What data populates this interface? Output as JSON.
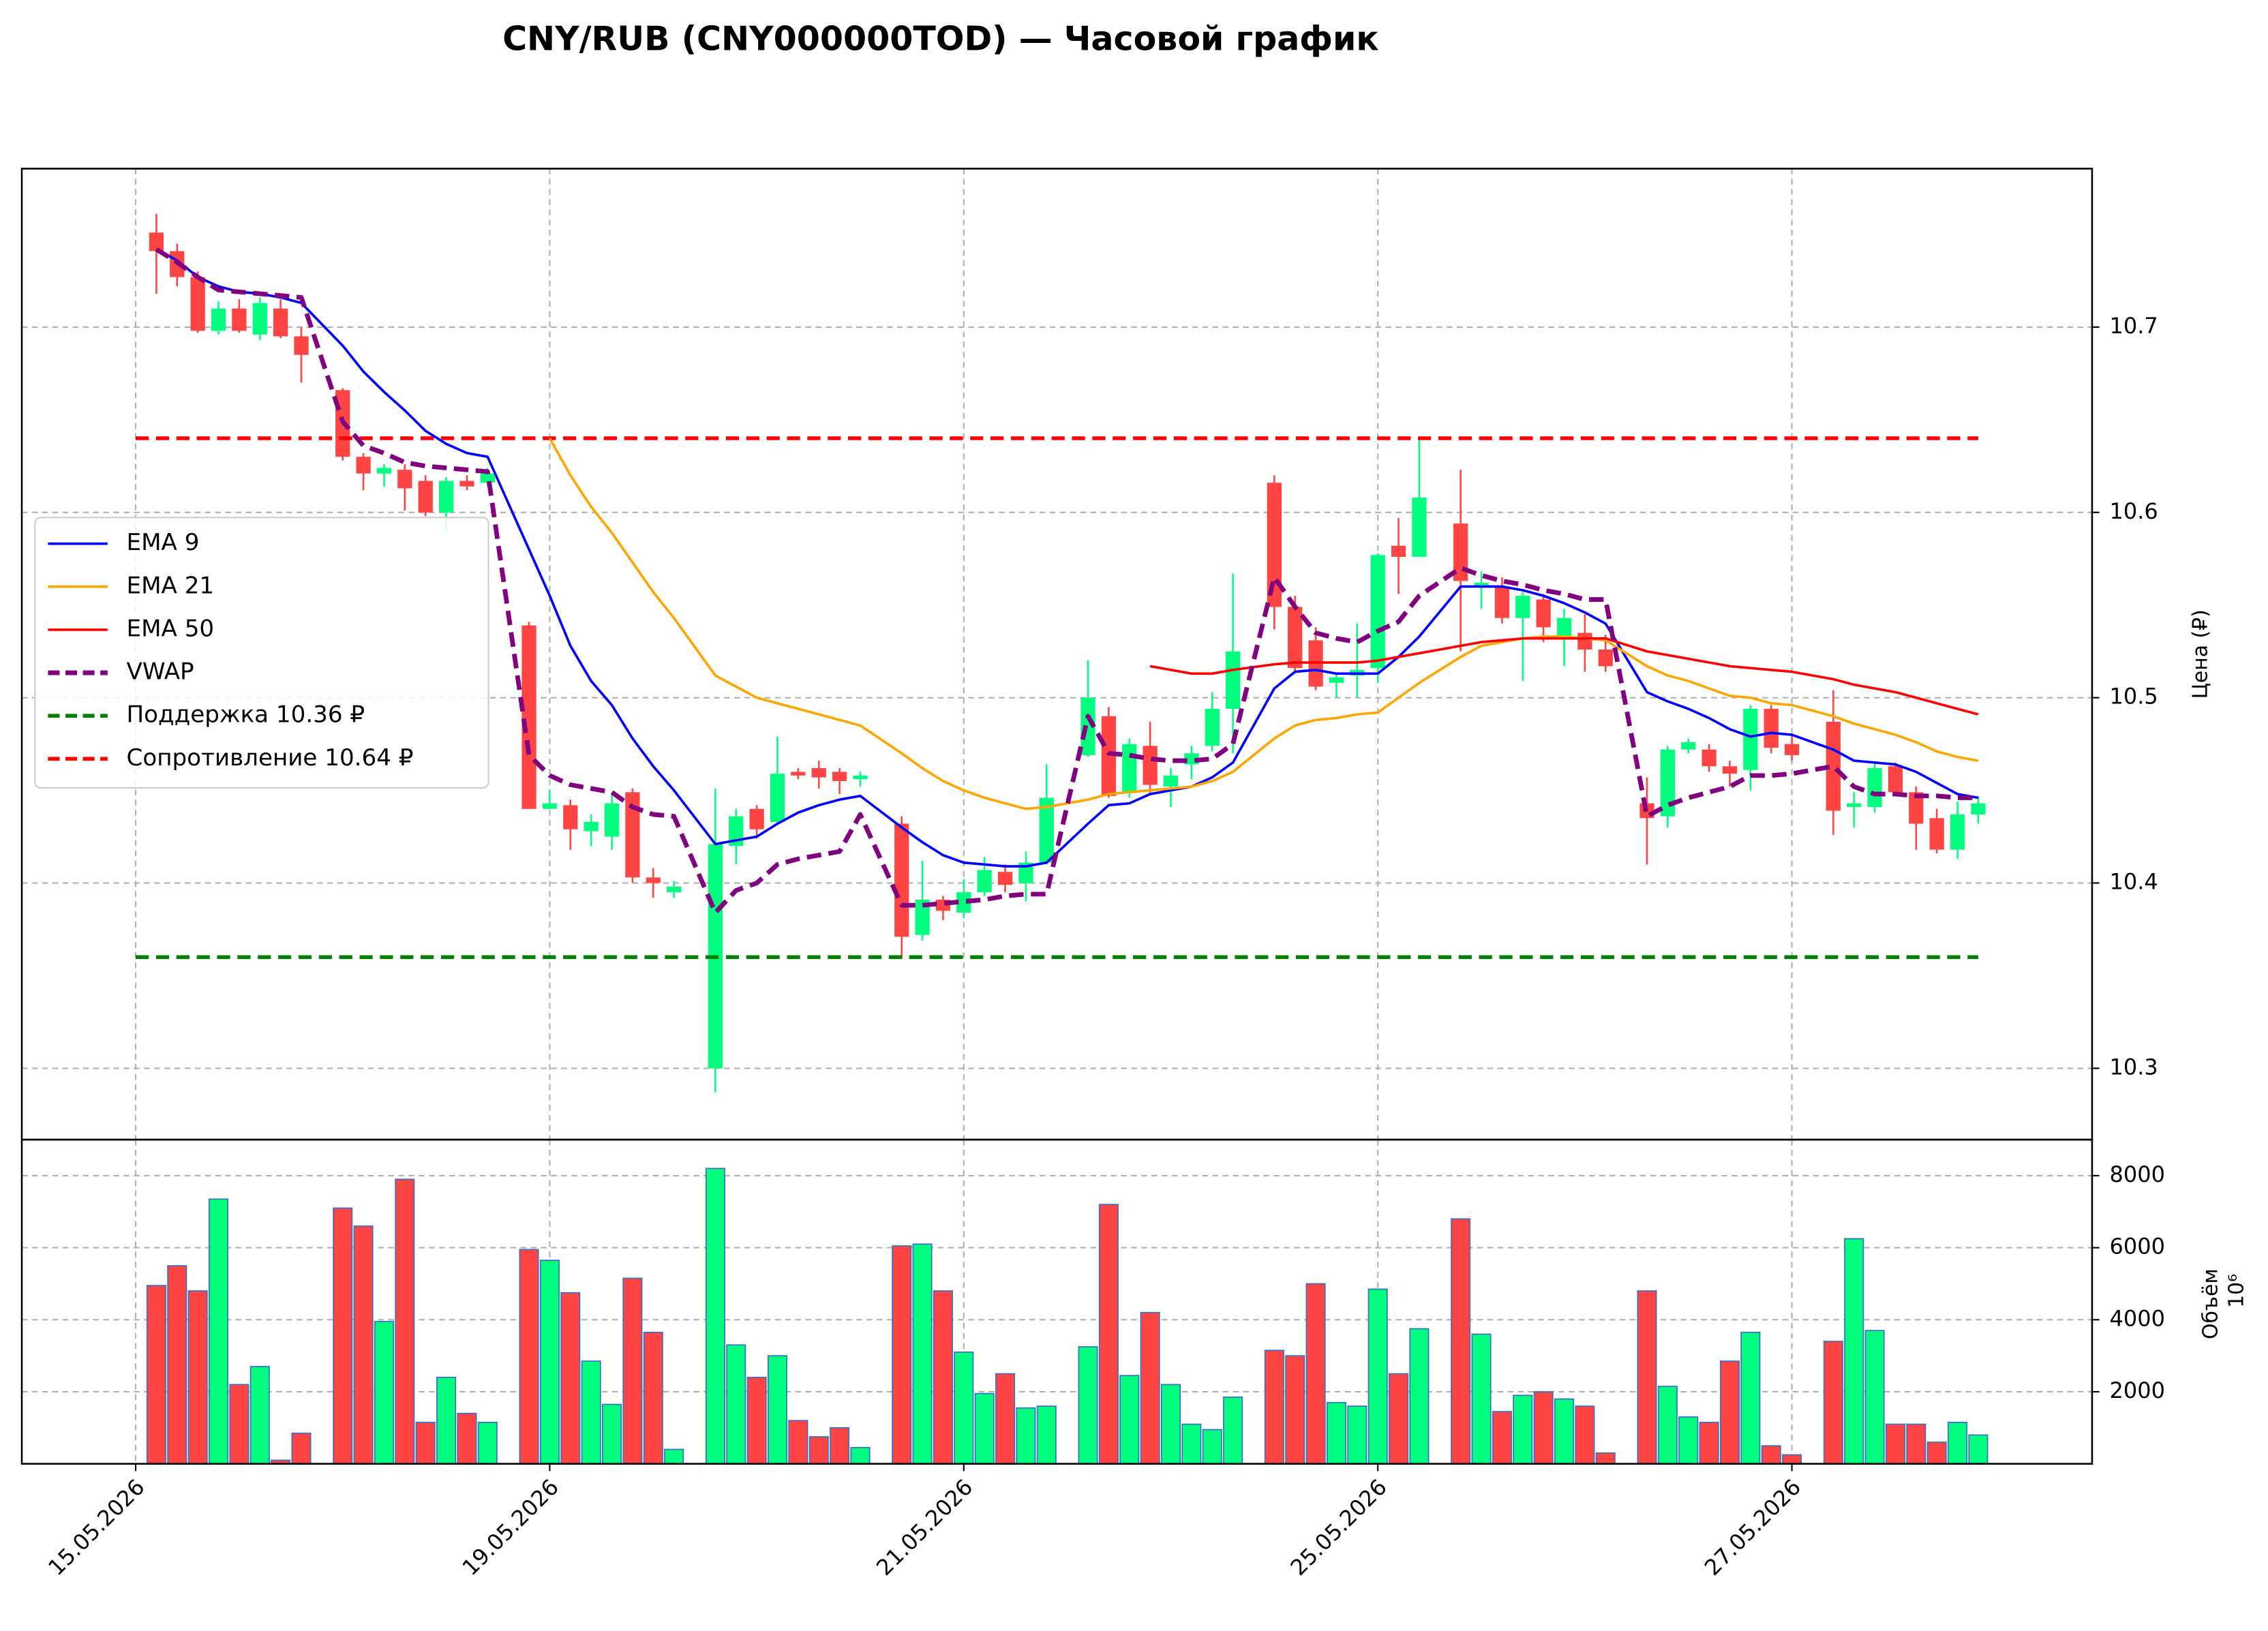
{
  "chart_data": [
    {
      "type": "candlestick",
      "title": "CNY/RUB (CNY000000TOD) — Часовой график",
      "y_label": "Цена (₽)",
      "xlim": [
        -5.5,
        94.5
      ],
      "ylim": [
        10.2615,
        10.7855
      ],
      "yticks": [
        10.3,
        10.4,
        10.5,
        10.6,
        10.7
      ],
      "grid": true,
      "legend": "center left",
      "up_color": "#00ff7f",
      "down_color": "#ff4444",
      "x": [
        1,
        2,
        3,
        4,
        5,
        6,
        7,
        8,
        10,
        11,
        12,
        13,
        14,
        15,
        16,
        17,
        19,
        20,
        21,
        22,
        23,
        24,
        25,
        26,
        28,
        29,
        30,
        31,
        32,
        33,
        34,
        35,
        37,
        38,
        39,
        40,
        41,
        42,
        43,
        44,
        46,
        47,
        48,
        49,
        50,
        51,
        52,
        53,
        55,
        56,
        57,
        58,
        59,
        60,
        61,
        62,
        64,
        65,
        66,
        67,
        68,
        69,
        70,
        71,
        73,
        74,
        75,
        76,
        77,
        78,
        79,
        80,
        82,
        83,
        84,
        85,
        86,
        87,
        88,
        89
      ],
      "open": [
        10.751,
        10.741,
        10.727,
        10.698,
        10.71,
        10.696,
        10.71,
        10.695,
        10.666,
        10.63,
        10.621,
        10.623,
        10.617,
        10.6,
        10.617,
        10.616,
        10.539,
        10.44,
        10.442,
        10.428,
        10.425,
        10.449,
        10.403,
        10.395,
        10.3,
        10.42,
        10.44,
        10.433,
        10.46,
        10.462,
        10.46,
        10.456,
        10.432,
        10.372,
        10.391,
        10.384,
        10.395,
        10.406,
        10.4,
        10.411,
        10.469,
        10.49,
        10.449,
        10.474,
        10.452,
        10.464,
        10.474,
        10.494,
        10.616,
        10.549,
        10.531,
        10.508,
        10.512,
        10.516,
        10.582,
        10.576,
        10.594,
        10.56,
        10.56,
        10.543,
        10.553,
        10.533,
        10.535,
        10.526,
        10.443,
        10.436,
        10.472,
        10.472,
        10.463,
        10.461,
        10.494,
        10.475,
        10.487,
        10.441,
        10.441,
        10.463,
        10.449,
        10.435,
        10.418,
        10.437
      ],
      "high": [
        10.761,
        10.745,
        10.73,
        10.714,
        10.715,
        10.716,
        10.715,
        10.7,
        10.667,
        10.632,
        10.626,
        10.626,
        10.62,
        10.619,
        10.62,
        10.624,
        10.541,
        10.45,
        10.445,
        10.437,
        10.448,
        10.451,
        10.408,
        10.401,
        10.451,
        10.44,
        10.442,
        10.479,
        10.462,
        10.466,
        10.462,
        10.46,
        10.436,
        10.412,
        10.393,
        10.402,
        10.414,
        10.41,
        10.417,
        10.464,
        10.52,
        10.495,
        10.478,
        10.487,
        10.462,
        10.474,
        10.503,
        10.567,
        10.62,
        10.555,
        10.538,
        10.513,
        10.54,
        10.578,
        10.597,
        10.64,
        10.623,
        10.568,
        10.565,
        10.557,
        10.556,
        10.548,
        10.545,
        10.534,
        10.457,
        10.474,
        10.478,
        10.475,
        10.466,
        10.496,
        10.496,
        10.48,
        10.504,
        10.449,
        10.465,
        10.465,
        10.452,
        10.44,
        10.444,
        10.447
      ],
      "low": [
        10.718,
        10.722,
        10.697,
        10.696,
        10.697,
        10.693,
        10.694,
        10.67,
        10.628,
        10.612,
        10.614,
        10.601,
        10.598,
        10.59,
        10.612,
        10.614,
        10.44,
        10.44,
        10.418,
        10.42,
        10.418,
        10.4,
        10.392,
        10.392,
        10.287,
        10.41,
        10.424,
        10.432,
        10.456,
        10.451,
        10.448,
        10.452,
        10.359,
        10.369,
        10.38,
        10.381,
        10.393,
        10.395,
        10.39,
        10.41,
        10.468,
        10.446,
        10.446,
        10.448,
        10.441,
        10.456,
        10.471,
        10.47,
        10.537,
        10.513,
        10.504,
        10.5,
        10.5,
        10.508,
        10.556,
        10.576,
        10.525,
        10.548,
        10.54,
        10.509,
        10.53,
        10.517,
        10.514,
        10.514,
        10.41,
        10.43,
        10.47,
        10.46,
        10.452,
        10.45,
        10.47,
        10.466,
        10.426,
        10.43,
        10.438,
        10.447,
        10.418,
        10.416,
        10.413,
        10.432
      ],
      "close": [
        10.741,
        10.727,
        10.698,
        10.71,
        10.698,
        10.713,
        10.695,
        10.685,
        10.63,
        10.621,
        10.624,
        10.613,
        10.6,
        10.617,
        10.614,
        10.621,
        10.44,
        10.443,
        10.429,
        10.433,
        10.443,
        10.403,
        10.4,
        10.398,
        10.421,
        10.436,
        10.429,
        10.459,
        10.458,
        10.457,
        10.455,
        10.458,
        10.371,
        10.391,
        10.385,
        10.395,
        10.407,
        10.399,
        10.411,
        10.446,
        10.5,
        10.447,
        10.475,
        10.453,
        10.458,
        10.47,
        10.494,
        10.525,
        10.549,
        10.516,
        10.506,
        10.511,
        10.515,
        10.577,
        10.576,
        10.608,
        10.563,
        10.562,
        10.543,
        10.555,
        10.538,
        10.543,
        10.526,
        10.517,
        10.435,
        10.472,
        10.476,
        10.463,
        10.459,
        10.494,
        10.473,
        10.469,
        10.439,
        10.443,
        10.462,
        10.449,
        10.432,
        10.418,
        10.437,
        10.443
      ],
      "series": [
        {
          "name": "EMA 9",
          "color": "#0000ff",
          "values": [
            10.742,
            10.736,
            10.727,
            10.722,
            10.719,
            10.718,
            10.716,
            10.713,
            10.69,
            10.676,
            10.665,
            10.655,
            10.644,
            10.637,
            10.632,
            10.63,
            10.58,
            10.555,
            10.528,
            10.509,
            10.496,
            10.478,
            10.463,
            10.45,
            10.421,
            10.423,
            10.425,
            10.432,
            10.438,
            10.442,
            10.445,
            10.447,
            10.43,
            10.422,
            10.415,
            10.411,
            10.41,
            10.409,
            10.409,
            10.411,
            10.432,
            10.442,
            10.443,
            10.448,
            10.45,
            10.452,
            10.457,
            10.465,
            10.505,
            10.514,
            10.515,
            10.513,
            10.513,
            10.513,
            10.522,
            10.533,
            10.56,
            10.56,
            10.56,
            10.558,
            10.555,
            10.551,
            10.546,
            10.54,
            10.503,
            10.498,
            10.494,
            10.489,
            10.483,
            10.479,
            10.481,
            10.48,
            10.472,
            10.466,
            10.465,
            10.464,
            10.46,
            10.454,
            10.448,
            10.446
          ]
        },
        {
          "name": "EMA 21",
          "color": "#ffa500",
          "values": [
            null,
            null,
            null,
            null,
            null,
            null,
            null,
            null,
            null,
            null,
            null,
            null,
            null,
            null,
            null,
            null,
            null,
            10.64,
            10.62,
            10.603,
            10.589,
            10.573,
            10.557,
            10.543,
            10.512,
            10.506,
            10.5,
            10.497,
            10.494,
            10.491,
            10.488,
            10.485,
            10.47,
            10.462,
            10.455,
            10.45,
            10.446,
            10.443,
            10.44,
            10.441,
            10.445,
            10.448,
            10.449,
            10.45,
            10.451,
            10.452,
            10.455,
            10.46,
            10.478,
            10.485,
            10.488,
            10.489,
            10.491,
            10.492,
            10.5,
            10.508,
            10.522,
            10.528,
            10.53,
            10.532,
            10.533,
            10.533,
            10.532,
            10.531,
            10.517,
            10.512,
            10.509,
            10.505,
            10.501,
            10.5,
            10.497,
            10.496,
            10.49,
            10.486,
            10.483,
            10.48,
            10.476,
            10.471,
            10.468,
            10.466
          ]
        },
        {
          "name": "EMA 50",
          "color": "#ff0000",
          "values": [
            null,
            null,
            null,
            null,
            null,
            null,
            null,
            null,
            null,
            null,
            null,
            null,
            null,
            null,
            null,
            null,
            null,
            null,
            null,
            null,
            null,
            null,
            null,
            null,
            null,
            null,
            null,
            null,
            null,
            null,
            null,
            null,
            null,
            null,
            null,
            null,
            null,
            null,
            null,
            null,
            null,
            null,
            null,
            10.517,
            10.515,
            10.513,
            10.513,
            10.515,
            10.518,
            10.519,
            10.519,
            10.519,
            10.519,
            10.52,
            10.522,
            10.524,
            10.528,
            10.53,
            10.531,
            10.532,
            10.532,
            10.532,
            10.532,
            10.532,
            10.525,
            10.523,
            10.521,
            10.519,
            10.517,
            10.516,
            10.515,
            10.514,
            10.51,
            10.507,
            10.505,
            10.503,
            10.5,
            10.497,
            10.494,
            10.491
          ]
        },
        {
          "name": "VWAP",
          "color": "#800080",
          "dashed": true,
          "values": [
            10.742,
            10.735,
            10.727,
            10.72,
            10.719,
            10.718,
            10.717,
            10.716,
            10.649,
            10.636,
            10.632,
            10.627,
            10.625,
            10.624,
            10.623,
            10.622,
            10.469,
            10.458,
            10.453,
            10.451,
            10.449,
            10.441,
            10.437,
            10.436,
            10.384,
            10.396,
            10.4,
            10.41,
            10.413,
            10.415,
            10.417,
            10.437,
            10.388,
            10.388,
            10.389,
            10.39,
            10.391,
            10.393,
            10.394,
            10.394,
            10.49,
            10.47,
            10.469,
            10.467,
            10.466,
            10.466,
            10.467,
            10.475,
            10.565,
            10.549,
            10.535,
            10.532,
            10.53,
            10.536,
            10.541,
            10.555,
            10.57,
            10.566,
            10.563,
            10.561,
            10.558,
            10.556,
            10.553,
            10.553,
            10.436,
            10.442,
            10.446,
            10.449,
            10.452,
            10.458,
            10.458,
            10.459,
            10.463,
            10.452,
            10.448,
            10.448,
            10.447,
            10.447,
            10.446,
            10.446
          ]
        }
      ],
      "levels": [
        {
          "name": "Поддержка 10.36 ₽",
          "value": 10.36,
          "color": "#008000"
        },
        {
          "name": "Сопротивление 10.64 ₽",
          "value": 10.64,
          "color": "#ff0000"
        }
      ]
    },
    {
      "type": "volume",
      "y_label": "Объём",
      "offset_text": "10⁶",
      "xlim": [
        -5.5,
        94.5
      ],
      "xticks": [
        {
          "value": 0,
          "label": "15.05.2026"
        },
        {
          "value": 20,
          "label": "19.05.2026"
        },
        {
          "value": 40,
          "label": "21.05.2026"
        },
        {
          "value": 60,
          "label": "25.05.2026"
        },
        {
          "value": 80,
          "label": "27.05.2026"
        }
      ],
      "ylim": [
        0,
        9000
      ],
      "yticks": [
        2000,
        4000,
        6000,
        8000
      ],
      "grid": true,
      "edge_color": "#3a6fc4",
      "values": [
        4950,
        5500,
        4800,
        7350,
        2200,
        2700,
        100,
        850,
        7100,
        6600,
        3950,
        7900,
        1150,
        2400,
        1400,
        1150,
        5950,
        5650,
        4750,
        2850,
        1650,
        5150,
        3650,
        400,
        8200,
        3300,
        2400,
        3000,
        1200,
        750,
        1000,
        450,
        6050,
        6100,
        4800,
        3100,
        1950,
        2500,
        1550,
        1600,
        3250,
        7200,
        2450,
        4200,
        2200,
        1100,
        950,
        1850,
        3150,
        3000,
        5000,
        1700,
        1600,
        4850,
        2500,
        3750,
        6800,
        3600,
        1450,
        1900,
        2000,
        1800,
        1600,
        300,
        4800,
        2150,
        1300,
        1150,
        2850,
        3650,
        500,
        250,
        3400,
        6250,
        3700,
        1100,
        1100,
        600,
        1150,
        800
      ]
    }
  ]
}
